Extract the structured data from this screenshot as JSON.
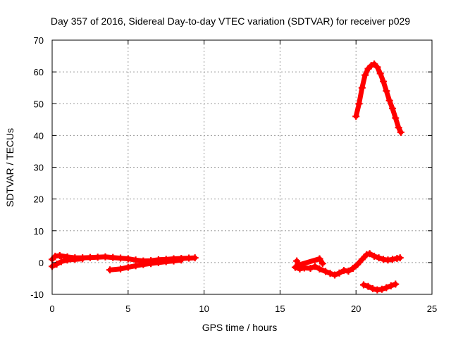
{
  "chart_data": {
    "type": "scatter",
    "title": "Day 357 of 2016, Sidereal Day-to-day VTEC variation (SDTVAR) for receiver p029",
    "xlabel": "GPS time / hours",
    "ylabel": "SDTVAR / TECUs",
    "xlim": [
      0,
      25
    ],
    "ylim": [
      -10,
      70
    ],
    "xticks": [
      0,
      5,
      10,
      15,
      20,
      25
    ],
    "yticks": [
      -10,
      0,
      10,
      20,
      30,
      40,
      50,
      60,
      70
    ],
    "grid": true,
    "marker": "plus",
    "color": "#ff0000",
    "series": [
      {
        "values": [
          [
            0.0,
            1.0
          ],
          [
            0.2,
            2.0
          ],
          [
            0.5,
            2.2
          ],
          [
            1.0,
            1.8
          ],
          [
            1.5,
            1.5
          ],
          [
            2.0,
            1.5
          ],
          [
            2.5,
            1.6
          ],
          [
            3.0,
            1.7
          ],
          [
            3.5,
            1.8
          ],
          [
            4.0,
            1.6
          ],
          [
            4.5,
            1.4
          ],
          [
            5.0,
            1.2
          ],
          [
            5.5,
            0.8
          ],
          [
            6.0,
            0.5
          ],
          [
            6.5,
            0.6
          ],
          [
            7.0,
            0.9
          ],
          [
            7.5,
            1.0
          ],
          [
            8.0,
            1.2
          ],
          [
            8.5,
            1.3
          ],
          [
            9.0,
            1.4
          ],
          [
            9.4,
            1.5
          ]
        ]
      },
      {
        "values": [
          [
            0.0,
            -1.2
          ],
          [
            0.3,
            -0.5
          ],
          [
            0.6,
            0.3
          ],
          [
            1.0,
            0.8
          ],
          [
            1.5,
            1.0
          ],
          [
            2.0,
            1.2
          ]
        ]
      },
      {
        "values": [
          [
            3.8,
            -2.3
          ],
          [
            4.5,
            -2.0
          ],
          [
            5.0,
            -1.5
          ],
          [
            5.5,
            -1.0
          ],
          [
            6.0,
            -0.6
          ],
          [
            6.5,
            -0.3
          ],
          [
            7.0,
            0.0
          ],
          [
            7.5,
            0.3
          ],
          [
            8.0,
            0.5
          ],
          [
            8.5,
            0.8
          ]
        ]
      },
      {
        "values": [
          [
            16.0,
            -1.5
          ],
          [
            16.3,
            -2.0
          ],
          [
            16.6,
            -1.7
          ],
          [
            17.0,
            -1.8
          ],
          [
            17.3,
            -1.2
          ],
          [
            17.6,
            -2.0
          ],
          [
            18.0,
            -2.8
          ],
          [
            18.3,
            -3.4
          ],
          [
            18.6,
            -3.9
          ],
          [
            18.9,
            -3.3
          ],
          [
            19.2,
            -2.5
          ],
          [
            19.5,
            -2.7
          ],
          [
            19.8,
            -1.8
          ],
          [
            20.1,
            -0.6
          ],
          [
            20.4,
            1.0
          ],
          [
            20.7,
            2.5
          ],
          [
            20.9,
            2.8
          ],
          [
            21.2,
            2.0
          ],
          [
            21.5,
            1.5
          ],
          [
            21.8,
            1.0
          ],
          [
            22.1,
            0.8
          ],
          [
            22.4,
            1.0
          ],
          [
            22.7,
            1.3
          ],
          [
            22.9,
            1.5
          ]
        ]
      },
      {
        "values": [
          [
            16.1,
            0.5
          ],
          [
            16.2,
            -0.8
          ],
          [
            17.6,
            1.2
          ],
          [
            17.8,
            -0.3
          ]
        ]
      },
      {
        "values": [
          [
            20.0,
            46.0
          ],
          [
            20.2,
            50.0
          ],
          [
            20.4,
            55.0
          ],
          [
            20.6,
            59.0
          ],
          [
            20.8,
            61.0
          ],
          [
            21.0,
            62.0
          ],
          [
            21.2,
            62.5
          ],
          [
            21.4,
            61.5
          ],
          [
            21.6,
            59.5
          ],
          [
            21.8,
            57.0
          ],
          [
            22.0,
            54.0
          ],
          [
            22.2,
            51.0
          ],
          [
            22.4,
            48.5
          ],
          [
            22.6,
            45.5
          ],
          [
            22.8,
            42.5
          ],
          [
            22.95,
            41.0
          ]
        ]
      },
      {
        "values": [
          [
            20.5,
            -7.0
          ],
          [
            20.8,
            -7.5
          ],
          [
            21.1,
            -8.2
          ],
          [
            21.4,
            -8.6
          ],
          [
            21.7,
            -8.4
          ],
          [
            22.0,
            -7.9
          ],
          [
            22.3,
            -7.3
          ],
          [
            22.6,
            -6.8
          ]
        ]
      }
    ]
  }
}
